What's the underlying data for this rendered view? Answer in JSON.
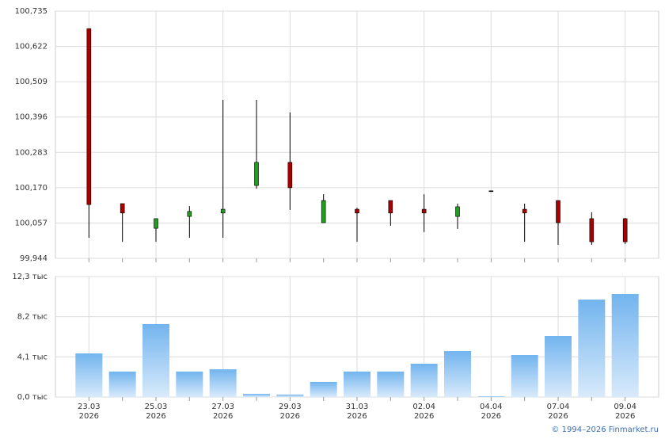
{
  "chart_data": [
    {
      "type": "candlestick",
      "up_color": "#1f9e1f",
      "down_color": "#a80000",
      "ylim": [
        99.944,
        100.735
      ],
      "yticks": [
        {
          "value": 100.735,
          "label": "100,735"
        },
        {
          "value": 100.622,
          "label": "100,622"
        },
        {
          "value": 100.509,
          "label": "100,509"
        },
        {
          "value": 100.396,
          "label": "100,396"
        },
        {
          "value": 100.283,
          "label": "100,283"
        },
        {
          "value": 100.17,
          "label": "100,170"
        },
        {
          "value": 100.057,
          "label": "100,057"
        },
        {
          "value": 99.944,
          "label": "99,944"
        }
      ],
      "open": [
        100.679,
        100.119,
        100.04,
        100.078,
        100.089,
        100.177,
        100.251,
        100.058,
        100.101,
        100.129,
        100.101,
        100.078,
        100.16,
        100.101,
        100.129,
        100.071,
        100.071
      ],
      "high": [
        100.679,
        100.119,
        100.071,
        100.111,
        100.451,
        100.451,
        100.411,
        100.149,
        100.106,
        100.129,
        100.149,
        100.119,
        100.16,
        100.119,
        100.129,
        100.091,
        100.073
      ],
      "low": [
        100.01,
        99.997,
        99.997,
        100.01,
        100.01,
        100.167,
        100.099,
        100.058,
        99.997,
        100.048,
        100.028,
        100.038,
        100.16,
        99.997,
        99.987,
        99.987,
        99.99
      ],
      "close": [
        100.116,
        100.089,
        100.071,
        100.094,
        100.101,
        100.251,
        100.17,
        100.129,
        100.089,
        100.089,
        100.089,
        100.109,
        100.16,
        100.089,
        100.058,
        99.997,
        99.997
      ]
    },
    {
      "type": "bar",
      "color_top": "#72b4ee",
      "color_bottom": "#d8eafb",
      "categories": [
        "23.03",
        null,
        "25.03",
        null,
        "27.03",
        null,
        "29.03",
        null,
        "31.03",
        null,
        "02.04",
        null,
        "04.04",
        null,
        "07.04",
        null,
        "09.04"
      ],
      "category_years": [
        "2026",
        null,
        "2026",
        null,
        "2026",
        null,
        "2026",
        null,
        "2026",
        null,
        "2026",
        null,
        "2026",
        null,
        "2026",
        null,
        "2026"
      ],
      "values": [
        4.45,
        2.6,
        7.45,
        2.6,
        2.83,
        0.32,
        0.25,
        1.54,
        2.6,
        2.6,
        3.4,
        4.69,
        0.08,
        4.29,
        6.23,
        9.95,
        10.52
      ],
      "ylim": [
        0,
        12.3
      ],
      "yticks": [
        {
          "value": 0,
          "label": "0,0 тыс"
        },
        {
          "value": 4.1,
          "label": "4,1 тыс"
        },
        {
          "value": 8.2,
          "label": "8,2 тыс"
        },
        {
          "value": 12.3,
          "label": "12,3 тыс"
        }
      ]
    }
  ],
  "footer": {
    "copyright": "© 1994–2026 Finmarket.ru"
  }
}
